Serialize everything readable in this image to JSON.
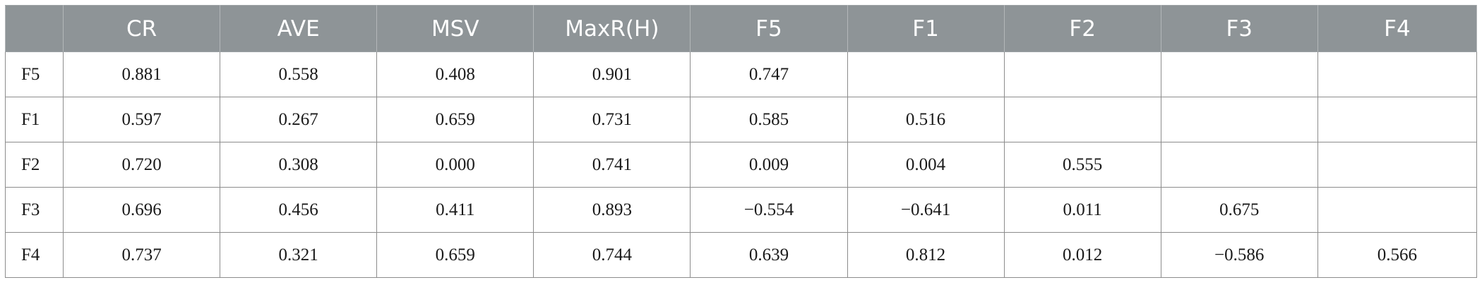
{
  "table": {
    "headers": [
      "",
      "CR",
      "AVE",
      "MSV",
      "MaxR(H)",
      "F5",
      "F1",
      "F2",
      "F3",
      "F4"
    ],
    "rows": [
      {
        "label": "F5",
        "cells": [
          "0.881",
          "0.558",
          "0.408",
          "0.901",
          "0.747",
          "",
          "",
          "",
          ""
        ]
      },
      {
        "label": "F1",
        "cells": [
          "0.597",
          "0.267",
          "0.659",
          "0.731",
          "0.585",
          "0.516",
          "",
          "",
          ""
        ]
      },
      {
        "label": "F2",
        "cells": [
          "0.720",
          "0.308",
          "0.000",
          "0.741",
          "0.009",
          "0.004",
          "0.555",
          "",
          ""
        ]
      },
      {
        "label": "F3",
        "cells": [
          "0.696",
          "0.456",
          "0.411",
          "0.893",
          "−0.554",
          "−0.641",
          "0.011",
          "0.675",
          ""
        ]
      },
      {
        "label": "F4",
        "cells": [
          "0.737",
          "0.321",
          "0.659",
          "0.744",
          "0.639",
          "0.812",
          "0.012",
          "−0.586",
          "0.566"
        ]
      }
    ]
  }
}
